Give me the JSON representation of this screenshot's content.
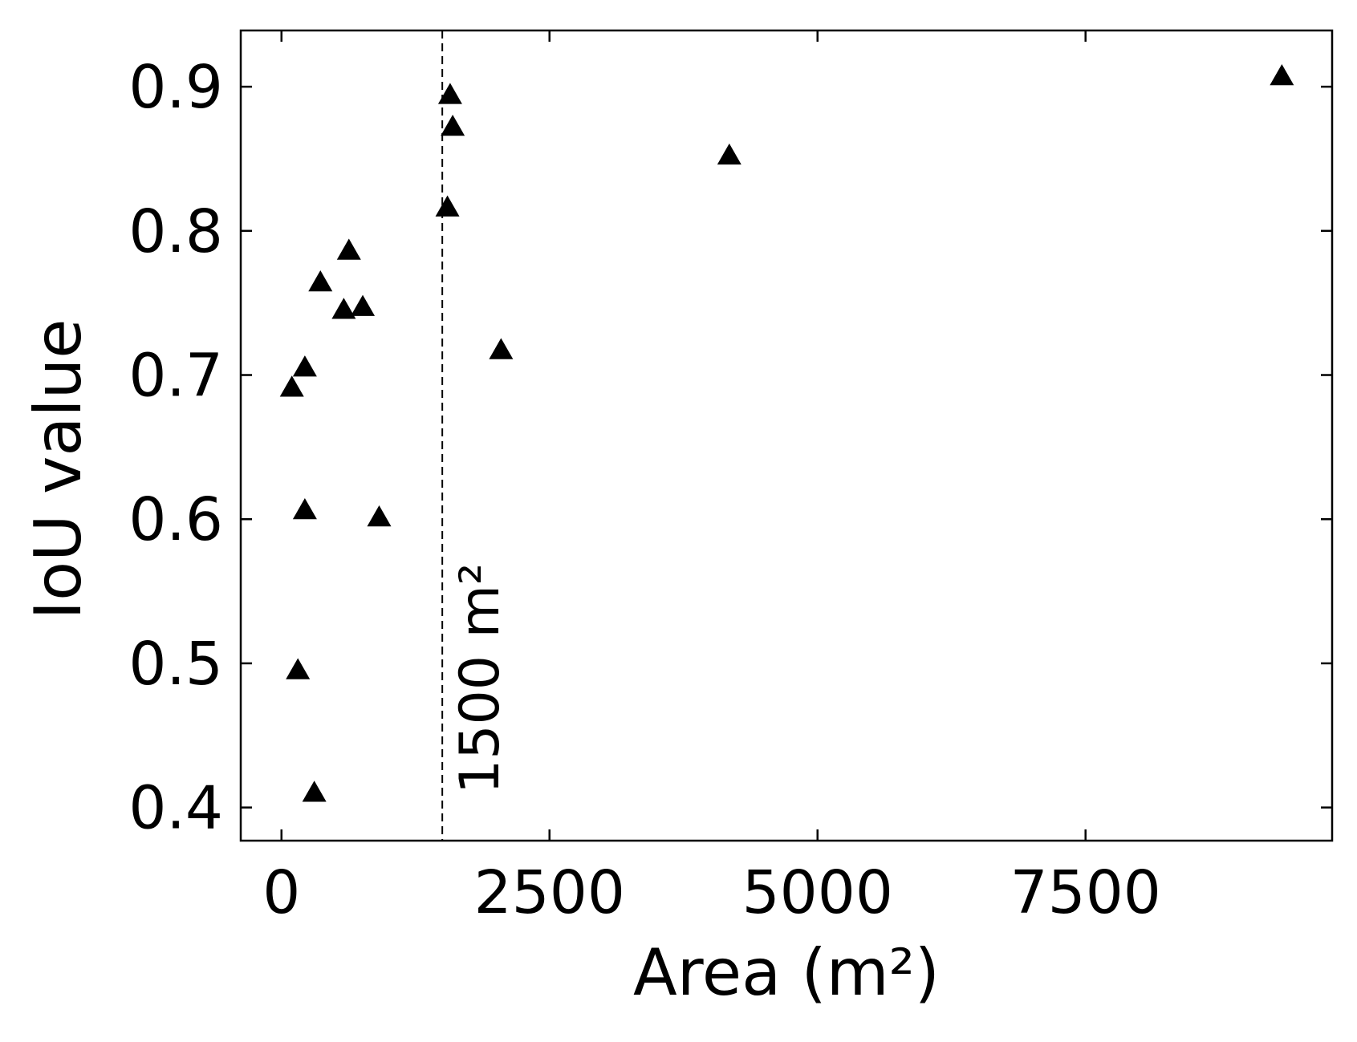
{
  "chart_data": {
    "type": "scatter",
    "xlabel": "Area (m²)",
    "ylabel": "IoU value",
    "x": [
      97,
      218,
      363,
      581,
      629,
      758,
      218,
      911,
      153,
      306,
      1548,
      1573,
      1597,
      2048,
      4177,
      9331
    ],
    "values": [
      0.69,
      0.704,
      0.763,
      0.744,
      0.785,
      0.746,
      0.605,
      0.6,
      0.494,
      0.409,
      0.815,
      0.893,
      0.871,
      0.716,
      0.851,
      0.906
    ],
    "color": "#000000",
    "marker": "triangle",
    "xlim": [
      -380,
      9800
    ],
    "ylim": [
      0.377,
      0.939
    ],
    "xticks": [
      0,
      2500,
      5000,
      7500
    ],
    "yticks": [
      0.4,
      0.5,
      0.6,
      0.7,
      0.8,
      0.9
    ],
    "vline": 1500,
    "vline_label": "1500 m²",
    "grid": false
  }
}
